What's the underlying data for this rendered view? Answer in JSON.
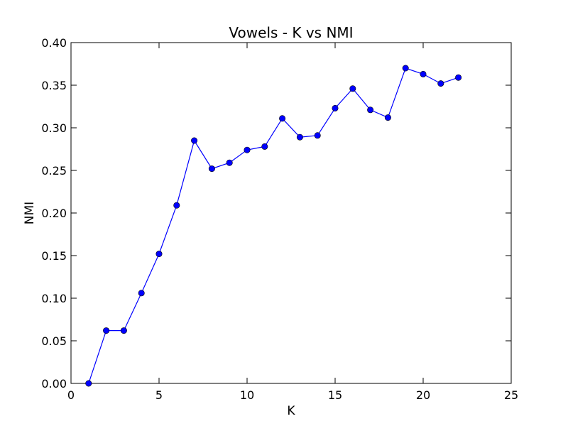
{
  "chart_data": {
    "type": "line",
    "title": "Vowels - K vs NMI",
    "xlabel": "K",
    "ylabel": "NMI",
    "xlim": [
      0,
      25
    ],
    "ylim": [
      0.0,
      0.4
    ],
    "x_ticks": [
      "0",
      "5",
      "10",
      "15",
      "20",
      "25"
    ],
    "y_ticks": [
      "0.00",
      "0.05",
      "0.10",
      "0.15",
      "0.20",
      "0.25",
      "0.30",
      "0.35",
      "0.40"
    ],
    "grid": false,
    "legend": "none",
    "series": [
      {
        "color": "#0000ff",
        "marker": "circle",
        "x": [
          1,
          2,
          3,
          4,
          5,
          6,
          7,
          8,
          9,
          10,
          11,
          12,
          13,
          14,
          15,
          16,
          17,
          18,
          19,
          20,
          21,
          22
        ],
        "y": [
          0.0,
          0.062,
          0.062,
          0.106,
          0.152,
          0.209,
          0.285,
          0.252,
          0.259,
          0.274,
          0.278,
          0.311,
          0.289,
          0.291,
          0.323,
          0.346,
          0.321,
          0.312,
          0.37,
          0.363,
          0.352,
          0.359
        ]
      }
    ]
  }
}
